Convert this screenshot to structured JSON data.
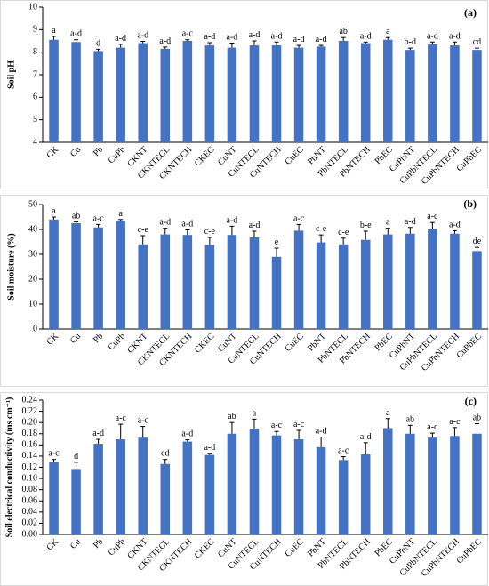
{
  "chart_data": [
    {
      "type": "bar",
      "panel_label": "(a)",
      "ylabel": "Soil pH",
      "ylim": [
        4,
        10
      ],
      "yticks": [
        "4",
        "5",
        "6",
        "7",
        "8",
        "9",
        "10"
      ],
      "grid": false,
      "bar_color": "#4472C4",
      "categories": [
        "CK",
        "Cu",
        "Pb",
        "CuPb",
        "CKNT",
        "CKNTECL",
        "CKNTECH",
        "CKEC",
        "CuNT",
        "CuNTECL",
        "CuNTECH",
        "CuEC",
        "PbNT",
        "PbNTECL",
        "PbNTECH",
        "PbEC",
        "CuPbNT",
        "CuPbNTECL",
        "CuPbNTECH",
        "CuPbEC"
      ],
      "values": [
        8.55,
        8.45,
        8.05,
        8.2,
        8.4,
        8.15,
        8.5,
        8.3,
        8.2,
        8.3,
        8.3,
        8.2,
        8.25,
        8.5,
        8.4,
        8.55,
        8.1,
        8.35,
        8.3,
        8.1
      ],
      "errors": [
        0.15,
        0.1,
        0.08,
        0.15,
        0.08,
        0.08,
        0.05,
        0.12,
        0.2,
        0.2,
        0.15,
        0.1,
        0.05,
        0.15,
        0.05,
        0.1,
        0.08,
        0.1,
        0.15,
        0.08
      ],
      "letters": [
        "a",
        "a-d",
        "d",
        "a-d",
        "a-d",
        "a-d",
        "a-c",
        "a-d",
        "a-d",
        "a-d",
        "a-d",
        "a-d",
        "a-d",
        "ab",
        "a-d",
        "a",
        "b-d",
        "a-d",
        "a-d",
        "cd"
      ]
    },
    {
      "type": "bar",
      "panel_label": "(b)",
      "ylabel": "Soil moisture (%)",
      "ylim": [
        0,
        50
      ],
      "yticks": [
        "0",
        "10",
        "20",
        "30",
        "40",
        "50"
      ],
      "grid": false,
      "bar_color": "#4472C4",
      "categories": [
        "CK",
        "Cu",
        "Pb",
        "CuPb",
        "CKNT",
        "CKNTECL",
        "CKNTECH",
        "CKEC",
        "CuNT",
        "CuNTECL",
        "CuNTECH",
        "CuEC",
        "PbNT",
        "PbNTECL",
        "PbNTECH",
        "PbEC",
        "CuPbNT",
        "CuPbNTECL",
        "CuPbNTECH",
        "CuPbEC"
      ],
      "values": [
        44,
        42.5,
        40.8,
        43.5,
        34,
        38,
        37.8,
        33.8,
        37.8,
        36.8,
        29,
        39.5,
        34.8,
        34,
        35.8,
        38,
        38.3,
        40.3,
        38.3,
        31.3
      ],
      "errors": [
        1,
        0.5,
        1.2,
        0.5,
        3.5,
        2.5,
        2,
        3,
        3.5,
        2.5,
        3.5,
        2.5,
        3,
        2.5,
        3.5,
        2.5,
        2.5,
        2.5,
        1.2,
        1.5
      ],
      "letters": [
        "a",
        "ab",
        "a-c",
        "a",
        "c-e",
        "a-d",
        "a-d",
        "c-e",
        "a-d",
        "a-d",
        "e",
        "a-c",
        "c-e",
        "c-e",
        "b-e",
        "a",
        "a-d",
        "a-c",
        "a-d",
        "de"
      ]
    },
    {
      "type": "bar",
      "panel_label": "(c)",
      "ylabel": "Soil electrical conductivity (ms cm⁻¹)",
      "ylim": [
        0,
        0.24
      ],
      "yticks": [
        "0.00",
        "0.02",
        "0.04",
        "0.06",
        "0.08",
        "0.10",
        "0.12",
        "0.14",
        "0.16",
        "0.18",
        "0.20",
        "0.22",
        "0.24"
      ],
      "grid": false,
      "bar_color": "#4472C4",
      "categories": [
        "CK",
        "Cu",
        "Pb",
        "CuPb",
        "CKNT",
        "CKNTECL",
        "CKNTECH",
        "CKEC",
        "CuNT",
        "CuNTECL",
        "CuNTECH",
        "CuEC",
        "PbNT",
        "PbNTECL",
        "PbNTECH",
        "PbEC",
        "CuPbNT",
        "CuPbNTECL",
        "CuPbNTECH",
        "CuPbEC"
      ],
      "values": [
        0.129,
        0.117,
        0.162,
        0.17,
        0.173,
        0.126,
        0.166,
        0.142,
        0.18,
        0.189,
        0.177,
        0.17,
        0.156,
        0.133,
        0.143,
        0.19,
        0.18,
        0.173,
        0.176,
        0.18
      ],
      "errors": [
        0.005,
        0.012,
        0.008,
        0.027,
        0.02,
        0.008,
        0.003,
        0.003,
        0.02,
        0.017,
        0.007,
        0.016,
        0.018,
        0.006,
        0.021,
        0.017,
        0.015,
        0.008,
        0.015,
        0.018
      ],
      "letters": [
        "a-c",
        "d",
        "a-d",
        "a-c",
        "a-c",
        "cd",
        "a-d",
        "a-d",
        "ab",
        "a",
        "a-c",
        "a-c",
        "a-d",
        "a-c",
        "a-d",
        "a",
        "ab",
        "a-c",
        "a-c",
        "ab"
      ]
    }
  ]
}
